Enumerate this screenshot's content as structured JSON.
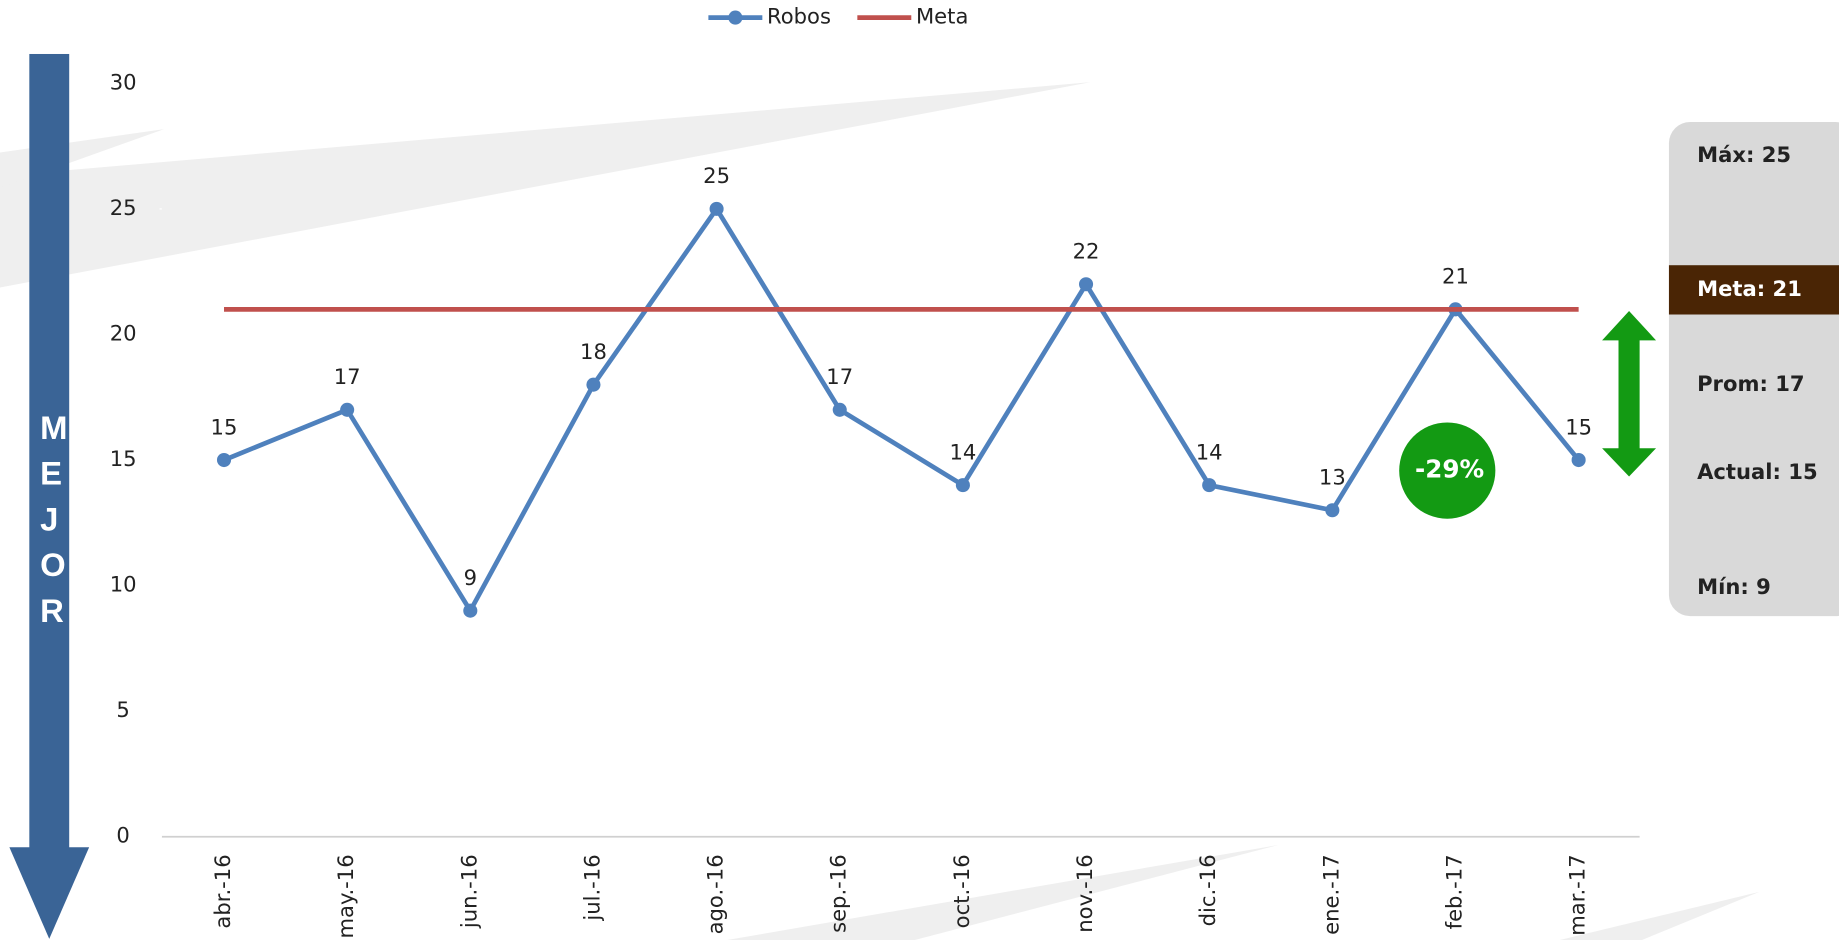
{
  "chart_data": {
    "type": "line",
    "categories": [
      "abr.-16",
      "may.-16",
      "jun.-16",
      "jul.-16",
      "ago.-16",
      "sep.-16",
      "oct.-16",
      "nov.-16",
      "dic.-16",
      "ene.-17",
      "feb.-17",
      "mar.-17"
    ],
    "series": [
      {
        "name": "Robos",
        "color": "#4f81bd",
        "values": [
          15,
          17,
          9,
          18,
          25,
          17,
          14,
          22,
          14,
          13,
          21,
          15
        ]
      },
      {
        "name": "Meta",
        "color": "#c0504d",
        "values": [
          21,
          21,
          21,
          21,
          21,
          21,
          21,
          21,
          21,
          21,
          21,
          21
        ]
      }
    ],
    "ylim": [
      0,
      30
    ],
    "yticks": [
      0,
      5,
      10,
      15,
      20,
      25,
      30
    ],
    "legend": "top",
    "arrow_label": "MEJOR",
    "badge": "-29%",
    "side_panel": {
      "max": "Máx: 25",
      "meta": "Meta: 21",
      "prom": "Prom: 17",
      "actual": "Actual: 15",
      "min": "Mín: 9"
    }
  }
}
